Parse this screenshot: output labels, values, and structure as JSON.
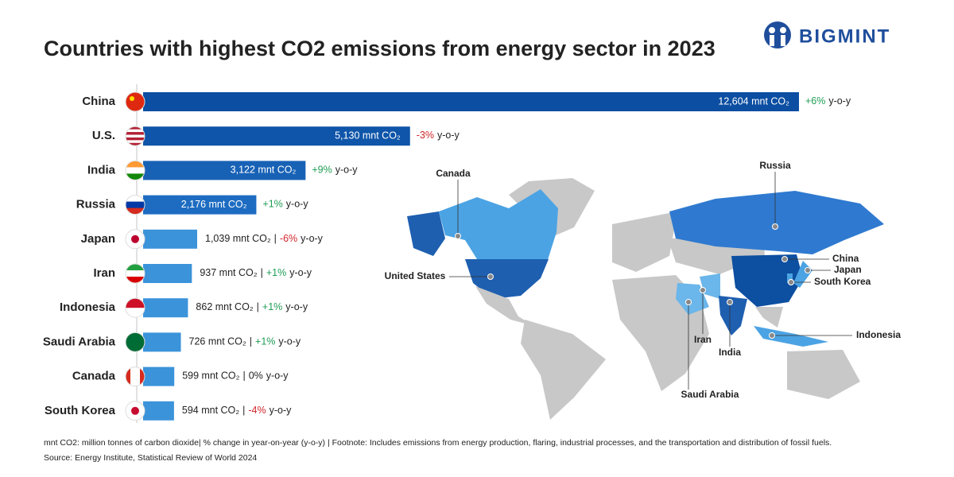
{
  "chart_data": {
    "type": "bar",
    "orientation": "horizontal",
    "title": "Countries with highest CO2 emissions from energy sector in 2023",
    "brand": "BIGMINT",
    "categories": [
      "China",
      "U.S.",
      "India",
      "Russia",
      "Japan",
      "Iran",
      "Indonesia",
      "Saudi Arabia",
      "Canada",
      "South Korea"
    ],
    "values": [
      12604,
      5130,
      3122,
      2176,
      1039,
      937,
      862,
      726,
      599,
      594
    ],
    "value_labels": [
      "12,604 mnt CO₂",
      "5,130 mnt CO₂",
      "3,122 mnt CO₂",
      "2,176 mnt CO₂",
      "1,039 mnt CO₂",
      "937 mnt CO₂",
      "862 mnt CO₂",
      "726 mnt CO₂",
      "599 mnt CO₂",
      "594 mnt CO₂"
    ],
    "yoy_changes": [
      6,
      -3,
      9,
      1,
      -6,
      1,
      1,
      1,
      0,
      -4
    ],
    "yoy_labels": [
      "+6%",
      "-3%",
      "+9%",
      "+1%",
      "-6%",
      "+1%",
      "+1%",
      "+1%",
      "0%",
      "-4%"
    ],
    "yoy_unit": "y-o-y",
    "separator": "|",
    "colors": [
      "#0b4ea2",
      "#0f55a9",
      "#1862b6",
      "#1d6cc2",
      "#3b93da",
      "#3b93da",
      "#3b93da",
      "#3b93da",
      "#3b93da",
      "#3b93da"
    ],
    "positive_color": "#1f9d55",
    "negative_color": "#d0262a",
    "neutral_color": "#222222",
    "footnote": "mnt CO2: million tonnes of carbon dioxide| % change in year-on-year (y-o-y) | Footnote: Includes emissions from energy production, flaring, industrial processes, and the transportation and distribution of fossil fuels.",
    "source": "Source: Energy Institute, Statistical Review of World 2024",
    "map_labels": [
      "Canada",
      "Russia",
      "United States",
      "China",
      "Japan",
      "South Korea",
      "Indonesia",
      "Iran",
      "India",
      "Saudi Arabia"
    ]
  }
}
